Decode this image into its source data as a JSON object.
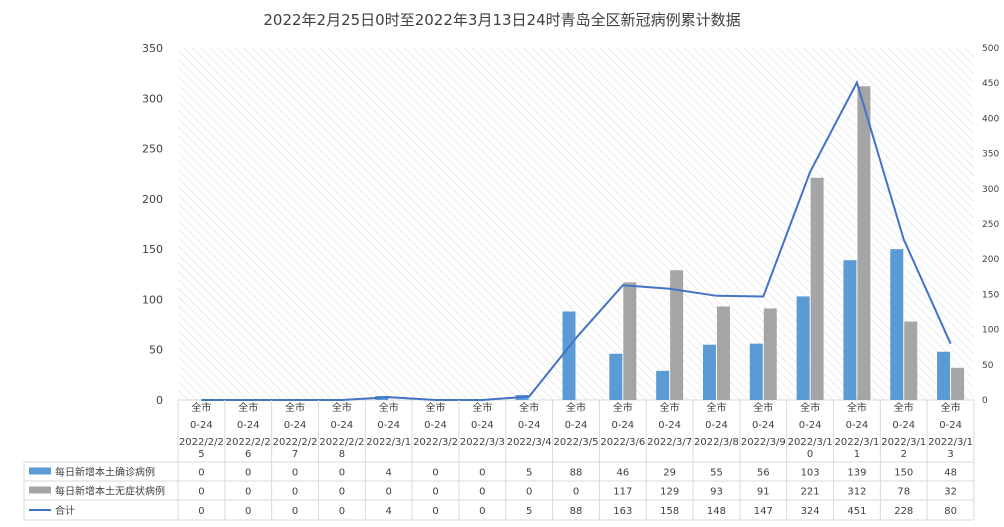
{
  "chart_data": {
    "type": "bar",
    "title": "2022年2月25日0时至2022年3月13日24时青岛全区新冠病例累计数据",
    "categories": [
      [
        "全市",
        "0-24",
        "2022/2/2",
        "5"
      ],
      [
        "全市",
        "0-24",
        "2022/2/2",
        "6"
      ],
      [
        "全市",
        "0-24",
        "2022/2/2",
        "7"
      ],
      [
        "全市",
        "0-24",
        "2022/2/2",
        "8"
      ],
      [
        "全市",
        "0-24",
        "2022/3/1",
        ""
      ],
      [
        "全市",
        "0-24",
        "2022/3/2",
        ""
      ],
      [
        "全市",
        "0-24",
        "2022/3/3",
        ""
      ],
      [
        "全市",
        "0-24",
        "2022/3/4",
        ""
      ],
      [
        "全市",
        "0-24",
        "2022/3/5",
        ""
      ],
      [
        "全市",
        "0-24",
        "2022/3/6",
        ""
      ],
      [
        "全市",
        "0-24",
        "2022/3/7",
        ""
      ],
      [
        "全市",
        "0-24",
        "2022/3/8",
        ""
      ],
      [
        "全市",
        "0-24",
        "2022/3/9",
        ""
      ],
      [
        "全市",
        "0-24",
        "2022/3/1",
        "0"
      ],
      [
        "全市",
        "0-24",
        "2022/3/1",
        "1"
      ],
      [
        "全市",
        "0-24",
        "2022/3/1",
        "2"
      ],
      [
        "全市",
        "0-24",
        "2022/3/1",
        "3"
      ]
    ],
    "series": [
      {
        "name": "每日新增本土确诊病例",
        "kind": "bar",
        "axis": "left",
        "color": "#5b9bd5",
        "values": [
          0,
          0,
          0,
          0,
          4,
          0,
          0,
          5,
          88,
          46,
          29,
          55,
          56,
          103,
          139,
          150,
          48
        ]
      },
      {
        "name": "每日新增本土无症状病例",
        "kind": "bar",
        "axis": "left",
        "color": "#a5a5a5",
        "values": [
          0,
          0,
          0,
          0,
          0,
          0,
          0,
          0,
          0,
          117,
          129,
          93,
          91,
          221,
          312,
          78,
          32
        ]
      },
      {
        "name": "合计",
        "kind": "line",
        "axis": "right",
        "color": "#4472c4",
        "values": [
          0,
          0,
          0,
          0,
          4,
          0,
          0,
          5,
          88,
          163,
          158,
          148,
          147,
          324,
          451,
          228,
          80
        ]
      }
    ],
    "ylim_left": [
      0,
      350
    ],
    "yticks_left": [
      0,
      50,
      100,
      150,
      200,
      250,
      300,
      350
    ],
    "ylim_right": [
      0,
      500
    ],
    "yticks_right": [
      0,
      50,
      100,
      150,
      200,
      250,
      300,
      350,
      400,
      450,
      500
    ],
    "grid": "diagonal-hatch",
    "legend": "data-table"
  }
}
